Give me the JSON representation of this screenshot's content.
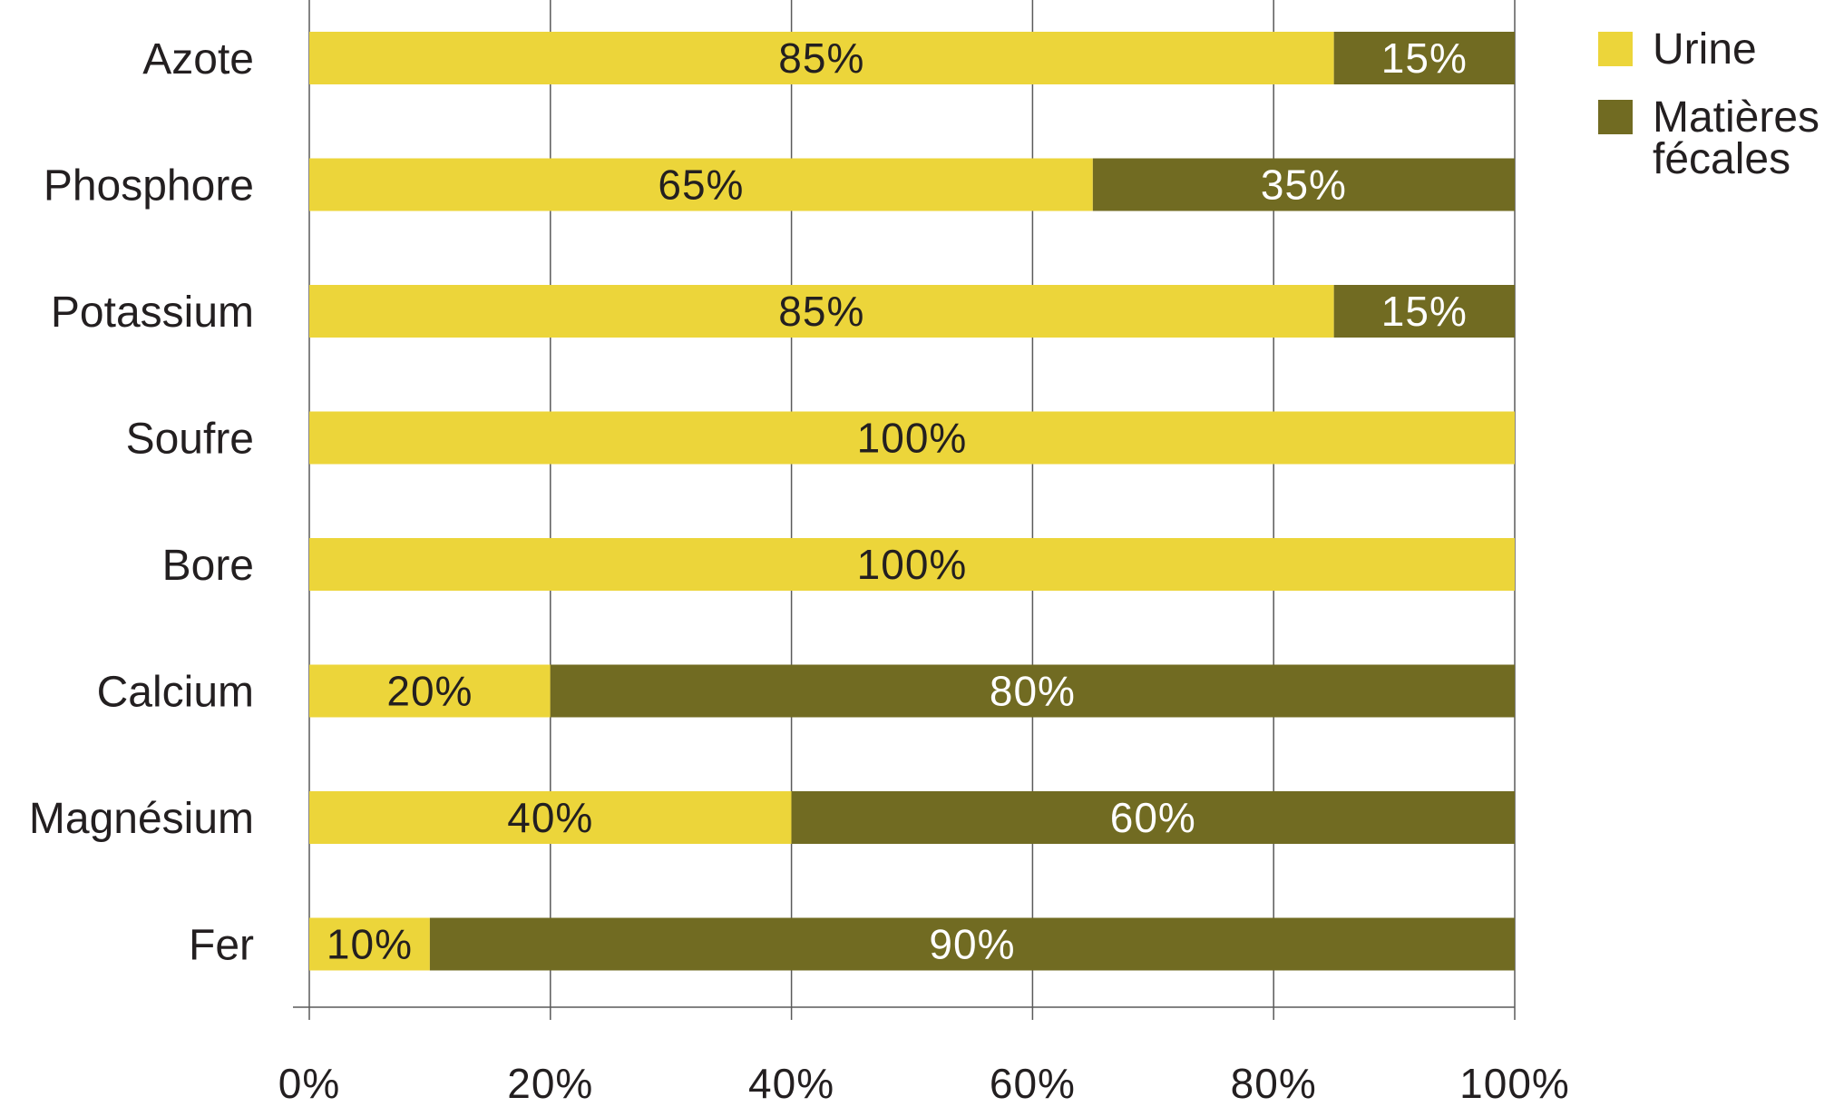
{
  "chart_data": {
    "type": "bar",
    "orientation": "horizontal",
    "stacked": true,
    "categories": [
      "Azote",
      "Phosphore",
      "Potassium",
      "Soufre",
      "Bore",
      "Calcium",
      "Magnésium",
      "Fer"
    ],
    "series": [
      {
        "name": "Urine",
        "color": "#ecd53a",
        "values": [
          85,
          65,
          85,
          100,
          100,
          20,
          40,
          10
        ],
        "labels": [
          "85%",
          "65%",
          "85%",
          "100%",
          "100%",
          "20%",
          "40%",
          "10%"
        ],
        "label_color": "#231f20"
      },
      {
        "name": "Matières fécales",
        "name_lines": [
          "Matières",
          "fécales"
        ],
        "color": "#716b22",
        "values": [
          15,
          35,
          15,
          0,
          0,
          80,
          60,
          90
        ],
        "labels": [
          "15%",
          "35%",
          "15%",
          "",
          "",
          "80%",
          "60%",
          "90%"
        ],
        "label_color": "#ffffff"
      }
    ],
    "xticks": [
      0,
      20,
      40,
      60,
      80,
      100
    ],
    "xtick_labels": [
      "0%",
      "20%",
      "40%",
      "60%",
      "80%",
      "100%"
    ],
    "xlim": [
      0,
      100
    ],
    "grid": "vertical",
    "legend": "top-right",
    "title": "",
    "xlabel": "",
    "ylabel": ""
  }
}
